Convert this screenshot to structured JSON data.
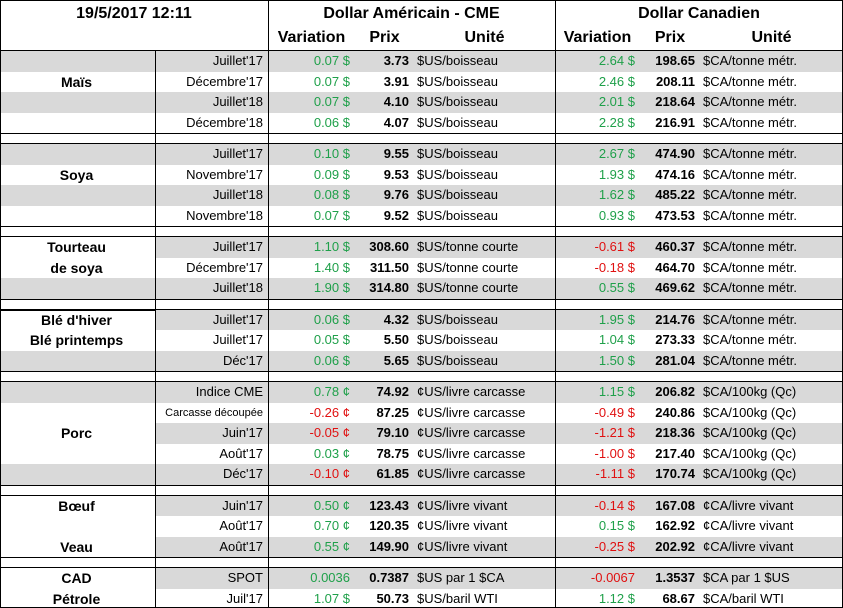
{
  "header": {
    "timestamp": "19/5/2017 12:11",
    "usd_title": "Dollar Américain - CME",
    "cad_title": "Dollar Canadien",
    "usd_columns": [
      "Variation",
      "Prix",
      "Unité"
    ],
    "cad_columns": [
      "Variation",
      "Prix",
      "Unité"
    ]
  },
  "sections": [
    {
      "rows": [
        {
          "contract": "Juillet'17",
          "usd_var": "0.07 $",
          "usd_price": "3.73",
          "usd_unit": "$US/boisseau",
          "cad_var": "2.64 $",
          "cad_price": "198.65",
          "cad_unit": "$CA/tonne métr."
        },
        {
          "label": "Maïs",
          "contract": "Décembre'17",
          "usd_var": "0.07 $",
          "usd_price": "3.91",
          "usd_unit": "$US/boisseau",
          "cad_var": "2.46 $",
          "cad_price": "208.11",
          "cad_unit": "$CA/tonne métr."
        },
        {
          "contract": "Juillet'18",
          "usd_var": "0.07 $",
          "usd_price": "4.10",
          "usd_unit": "$US/boisseau",
          "cad_var": "2.01 $",
          "cad_price": "218.64",
          "cad_unit": "$CA/tonne métr."
        },
        {
          "contract": "Décembre'18",
          "usd_var": "0.06 $",
          "usd_price": "4.07",
          "usd_unit": "$US/boisseau",
          "cad_var": "2.28 $",
          "cad_price": "216.91",
          "cad_unit": "$CA/tonne métr."
        }
      ]
    },
    {
      "rows": [
        {
          "contract": "Juillet'17",
          "usd_var": "0.10 $",
          "usd_price": "9.55",
          "usd_unit": "$US/boisseau",
          "cad_var": "2.67 $",
          "cad_price": "474.90",
          "cad_unit": "$CA/tonne métr."
        },
        {
          "label": "Soya",
          "contract": "Novembre'17",
          "usd_var": "0.09 $",
          "usd_price": "9.53",
          "usd_unit": "$US/boisseau",
          "cad_var": "1.93 $",
          "cad_price": "474.16",
          "cad_unit": "$CA/tonne métr."
        },
        {
          "contract": "Juillet'18",
          "usd_var": "0.08 $",
          "usd_price": "9.76",
          "usd_unit": "$US/boisseau",
          "cad_var": "1.62 $",
          "cad_price": "485.22",
          "cad_unit": "$CA/tonne métr."
        },
        {
          "contract": "Novembre'18",
          "usd_var": "0.07 $",
          "usd_price": "9.52",
          "usd_unit": "$US/boisseau",
          "cad_var": "0.93 $",
          "cad_price": "473.53",
          "cad_unit": "$CA/tonne métr."
        }
      ]
    },
    {
      "rows": [
        {
          "label": "Tourteau",
          "contract": "Juillet'17",
          "usd_var": "1.10 $",
          "usd_price": "308.60",
          "usd_unit": "$US/tonne courte",
          "cad_var": "-0.61 $",
          "cad_price": "460.37",
          "cad_unit": "$CA/tonne métr."
        },
        {
          "label": "de soya",
          "contract": "Décembre'17",
          "usd_var": "1.40 $",
          "usd_price": "311.50",
          "usd_unit": "$US/tonne courte",
          "cad_var": "-0.18 $",
          "cad_price": "464.70",
          "cad_unit": "$CA/tonne métr."
        },
        {
          "contract": "Juillet'18",
          "usd_var": "1.90 $",
          "usd_price": "314.80",
          "usd_unit": "$US/tonne courte",
          "cad_var": "0.55 $",
          "cad_price": "469.62",
          "cad_unit": "$CA/tonne métr."
        }
      ]
    },
    {
      "rows": [
        {
          "label": "Blé d'hiver",
          "contract": "Juillet'17",
          "usd_var": "0.06 $",
          "usd_price": "4.32",
          "usd_unit": "$US/boisseau",
          "cad_var": "1.95 $",
          "cad_price": "214.76",
          "cad_unit": "$CA/tonne métr."
        },
        {
          "label": "Blé printemps",
          "contract": "Juillet'17",
          "usd_var": "0.05 $",
          "usd_price": "5.50",
          "usd_unit": "$US/boisseau",
          "cad_var": "1.04 $",
          "cad_price": "273.33",
          "cad_unit": "$CA/tonne métr."
        },
        {
          "contract": "Déc'17",
          "usd_var": "0.06 $",
          "usd_price": "5.65",
          "usd_unit": "$US/boisseau",
          "cad_var": "1.50 $",
          "cad_price": "281.04",
          "cad_unit": "$CA/tonne métr."
        }
      ]
    },
    {
      "rows": [
        {
          "contract": "Indice CME",
          "usd_var": "0.78 ¢",
          "usd_price": "74.92",
          "usd_unit": "¢US/livre carcasse",
          "cad_var": "1.15 $",
          "cad_price": "206.82",
          "cad_unit": "$CA/100kg (Qc)"
        },
        {
          "contract": "Carcasse découpée",
          "usd_var": "-0.26 ¢",
          "usd_price": "87.25",
          "usd_unit": "¢US/livre carcasse",
          "cad_var": "-0.49 $",
          "cad_price": "240.86",
          "cad_unit": "$CA/100kg (Qc)"
        },
        {
          "label": "Porc",
          "contract": "Juin'17",
          "usd_var": "-0.05 ¢",
          "usd_price": "79.10",
          "usd_unit": "¢US/livre carcasse",
          "cad_var": "-1.21 $",
          "cad_price": "218.36",
          "cad_unit": "$CA/100kg (Qc)"
        },
        {
          "contract": "Août'17",
          "usd_var": "0.03 ¢",
          "usd_price": "78.75",
          "usd_unit": "¢US/livre carcasse",
          "cad_var": "-1.00 $",
          "cad_price": "217.40",
          "cad_unit": "$CA/100kg (Qc)"
        },
        {
          "contract": "Déc'17",
          "usd_var": "-0.10 ¢",
          "usd_price": "61.85",
          "usd_unit": "¢US/livre carcasse",
          "cad_var": "-1.11 $",
          "cad_price": "170.74",
          "cad_unit": "$CA/100kg (Qc)"
        }
      ]
    },
    {
      "rows": [
        {
          "label": "Bœuf",
          "contract": "Juin'17",
          "usd_var": "0.50 ¢",
          "usd_price": "123.43",
          "usd_unit": "¢US/livre vivant",
          "cad_var": "-0.14 $",
          "cad_price": "167.08",
          "cad_unit": "¢CA/livre vivant"
        },
        {
          "contract": "Août'17",
          "usd_var": "0.70 ¢",
          "usd_price": "120.35",
          "usd_unit": "¢US/livre vivant",
          "cad_var": "0.15 $",
          "cad_price": "162.92",
          "cad_unit": "¢CA/livre vivant"
        },
        {
          "label": "Veau",
          "contract": "Août'17",
          "usd_var": "0.55 ¢",
          "usd_price": "149.90",
          "usd_unit": "¢US/livre vivant",
          "cad_var": "-0.25 $",
          "cad_price": "202.92",
          "cad_unit": "¢CA/livre vivant"
        }
      ]
    },
    {
      "rows": [
        {
          "label": "CAD",
          "contract": "SPOT",
          "usd_var": "0.0036",
          "usd_price": "0.7387",
          "usd_unit": "$US par 1 $CA",
          "cad_var": "-0.0067",
          "cad_price": "1.3537",
          "cad_unit": "$CA par 1 $US"
        },
        {
          "label": "Pétrole",
          "contract": "Juil'17",
          "usd_var": "1.07 $",
          "usd_price": "50.73",
          "usd_unit": "$US/baril WTI",
          "cad_var": "1.12 $",
          "cad_price": "68.67",
          "cad_unit": "$CA/baril WTI"
        }
      ]
    }
  ]
}
